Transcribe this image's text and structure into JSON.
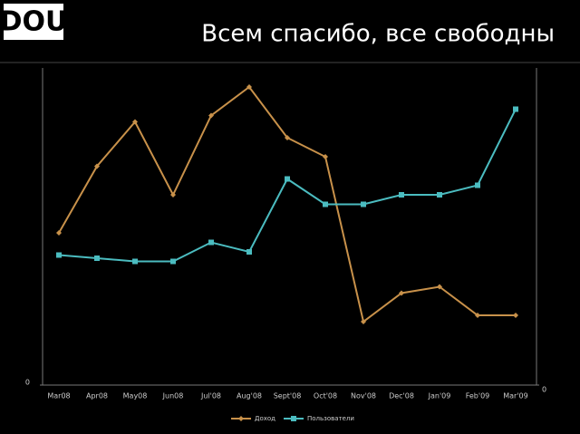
{
  "logo": "DOU",
  "chart_data": {
    "type": "line",
    "title": "Всем спасибо, все свободны",
    "categories": [
      "Mar08",
      "Apr08",
      "May08",
      "Jun08",
      "Jul'08",
      "Aug'08",
      "Sept'08",
      "Oct'08",
      "Nov'08",
      "Dec'08",
      "Jan'09",
      "Feb'09",
      "Mar'09"
    ],
    "series": [
      {
        "name": "Доход",
        "color": "#c8914a",
        "marker": "diamond",
        "values": [
          48,
          69,
          83,
          60,
          85,
          94,
          78,
          72,
          20,
          29,
          31,
          22,
          22
        ]
      },
      {
        "name": "Пользователи",
        "color": "#4bbcc0",
        "marker": "square",
        "axis": "y2",
        "values": [
          41,
          40,
          39,
          39,
          45,
          42,
          65,
          57,
          57,
          60,
          60,
          63,
          87
        ]
      }
    ],
    "ylim": [
      0,
      100
    ],
    "yticks": [
      0
    ],
    "y2lim": [
      0,
      100
    ],
    "y2ticks": [
      0
    ],
    "legend": "bottom"
  }
}
